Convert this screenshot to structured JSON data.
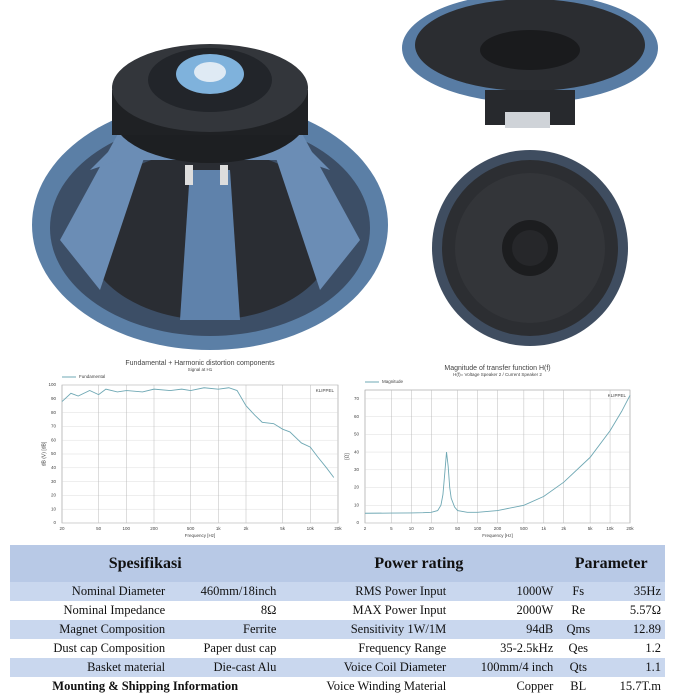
{
  "chart_data": [
    {
      "type": "line",
      "title": "Fundamental + Harmonic distortion components",
      "subtitle": "Signal at H1",
      "legend": "Fundamental",
      "brand": "KLIPPEL",
      "ylabel": "dB (V) [dB]",
      "xlabel": "Frequency [Hz]",
      "xscale": "log",
      "grid": true,
      "color": "#6fa8b4",
      "x": [
        20,
        25,
        30,
        40,
        50,
        60,
        80,
        100,
        150,
        200,
        300,
        400,
        500,
        700,
        1000,
        1300,
        1600,
        2000,
        2500,
        3000,
        4000,
        5000,
        6000,
        8000,
        10000,
        12000,
        15000,
        18000
      ],
      "values": [
        88,
        94,
        92,
        96,
        93,
        97,
        95,
        96,
        95,
        97,
        96,
        97,
        96,
        98,
        97,
        98,
        96,
        85,
        78,
        73,
        72,
        68,
        66,
        58,
        55,
        48,
        40,
        33
      ],
      "xlim": [
        20,
        20000
      ],
      "ylim": [
        0,
        100
      ],
      "xticks": [
        20,
        50,
        100,
        200,
        500,
        {
          "value": 1000,
          "label": "1k"
        },
        {
          "value": 2000,
          "label": "2k"
        },
        {
          "value": 5000,
          "label": "5k"
        },
        {
          "value": 10000,
          "label": "10k"
        },
        {
          "value": 20000,
          "label": "20k"
        }
      ],
      "yticks": [
        0,
        10,
        20,
        30,
        40,
        50,
        60,
        70,
        80,
        90,
        100
      ]
    },
    {
      "type": "line",
      "title": "Magnitude of transfer function H(f)",
      "subtitle": "H(f)= Voltage Speaker 2 / Current Speaker 2",
      "legend": "Magnitude",
      "brand": "KLIPPEL",
      "ylabel": "[Ω]",
      "xlabel": "Frequency [Hz]",
      "xscale": "log",
      "grid": true,
      "color": "#6fa8b4",
      "x": [
        2,
        5,
        10,
        15,
        20,
        25,
        28,
        30,
        32,
        34,
        36,
        38,
        40,
        45,
        50,
        70,
        100,
        200,
        500,
        1000,
        2000,
        5000,
        10000,
        15000,
        20000
      ],
      "values": [
        5.5,
        5.6,
        5.7,
        5.8,
        6,
        7,
        10,
        16,
        28,
        40,
        32,
        20,
        14,
        9,
        7,
        6,
        6,
        7,
        10,
        15,
        23,
        37,
        52,
        63,
        72
      ],
      "xlim": [
        2,
        20000
      ],
      "ylim": [
        0,
        75
      ],
      "xticks": [
        2,
        5,
        10,
        20,
        50,
        100,
        200,
        500,
        {
          "value": 1000,
          "label": "1k"
        },
        {
          "value": 2000,
          "label": "2k"
        },
        {
          "value": 5000,
          "label": "5k"
        },
        {
          "value": 10000,
          "label": "10k"
        },
        {
          "value": 20000,
          "label": "20k"
        }
      ],
      "yticks": [
        0,
        10,
        20,
        30,
        40,
        50,
        60,
        70
      ]
    }
  ],
  "table": {
    "header": [
      "Spesifikasi",
      "Power rating",
      "Parameter"
    ],
    "rows": [
      [
        "Nominal Diameter",
        "460mm/18inch",
        "RMS Power Input",
        "1000W",
        "Fs",
        "35Hz"
      ],
      [
        "Nominal Impedance",
        "8Ω",
        "MAX Power Input",
        "2000W",
        "Re",
        "5.57Ω"
      ],
      [
        "Magnet Composition",
        "Ferrite",
        "Sensitivity 1W/1M",
        "94dB",
        "Qms",
        "12.89"
      ],
      [
        "Dust cap Composition",
        "Paper dust cap",
        "Frequency Range",
        "35-2.5kHz",
        "Qes",
        "1.2"
      ],
      [
        "Basket material",
        "Die-cast Alu",
        "Voice Coil Diameter",
        "100mm/4 inch",
        "Qts",
        "1.1"
      ],
      [
        "Mounting & Shipping Information",
        "Voice Winding Material",
        "Copper",
        "BL",
        "15.7T.m"
      ]
    ]
  }
}
